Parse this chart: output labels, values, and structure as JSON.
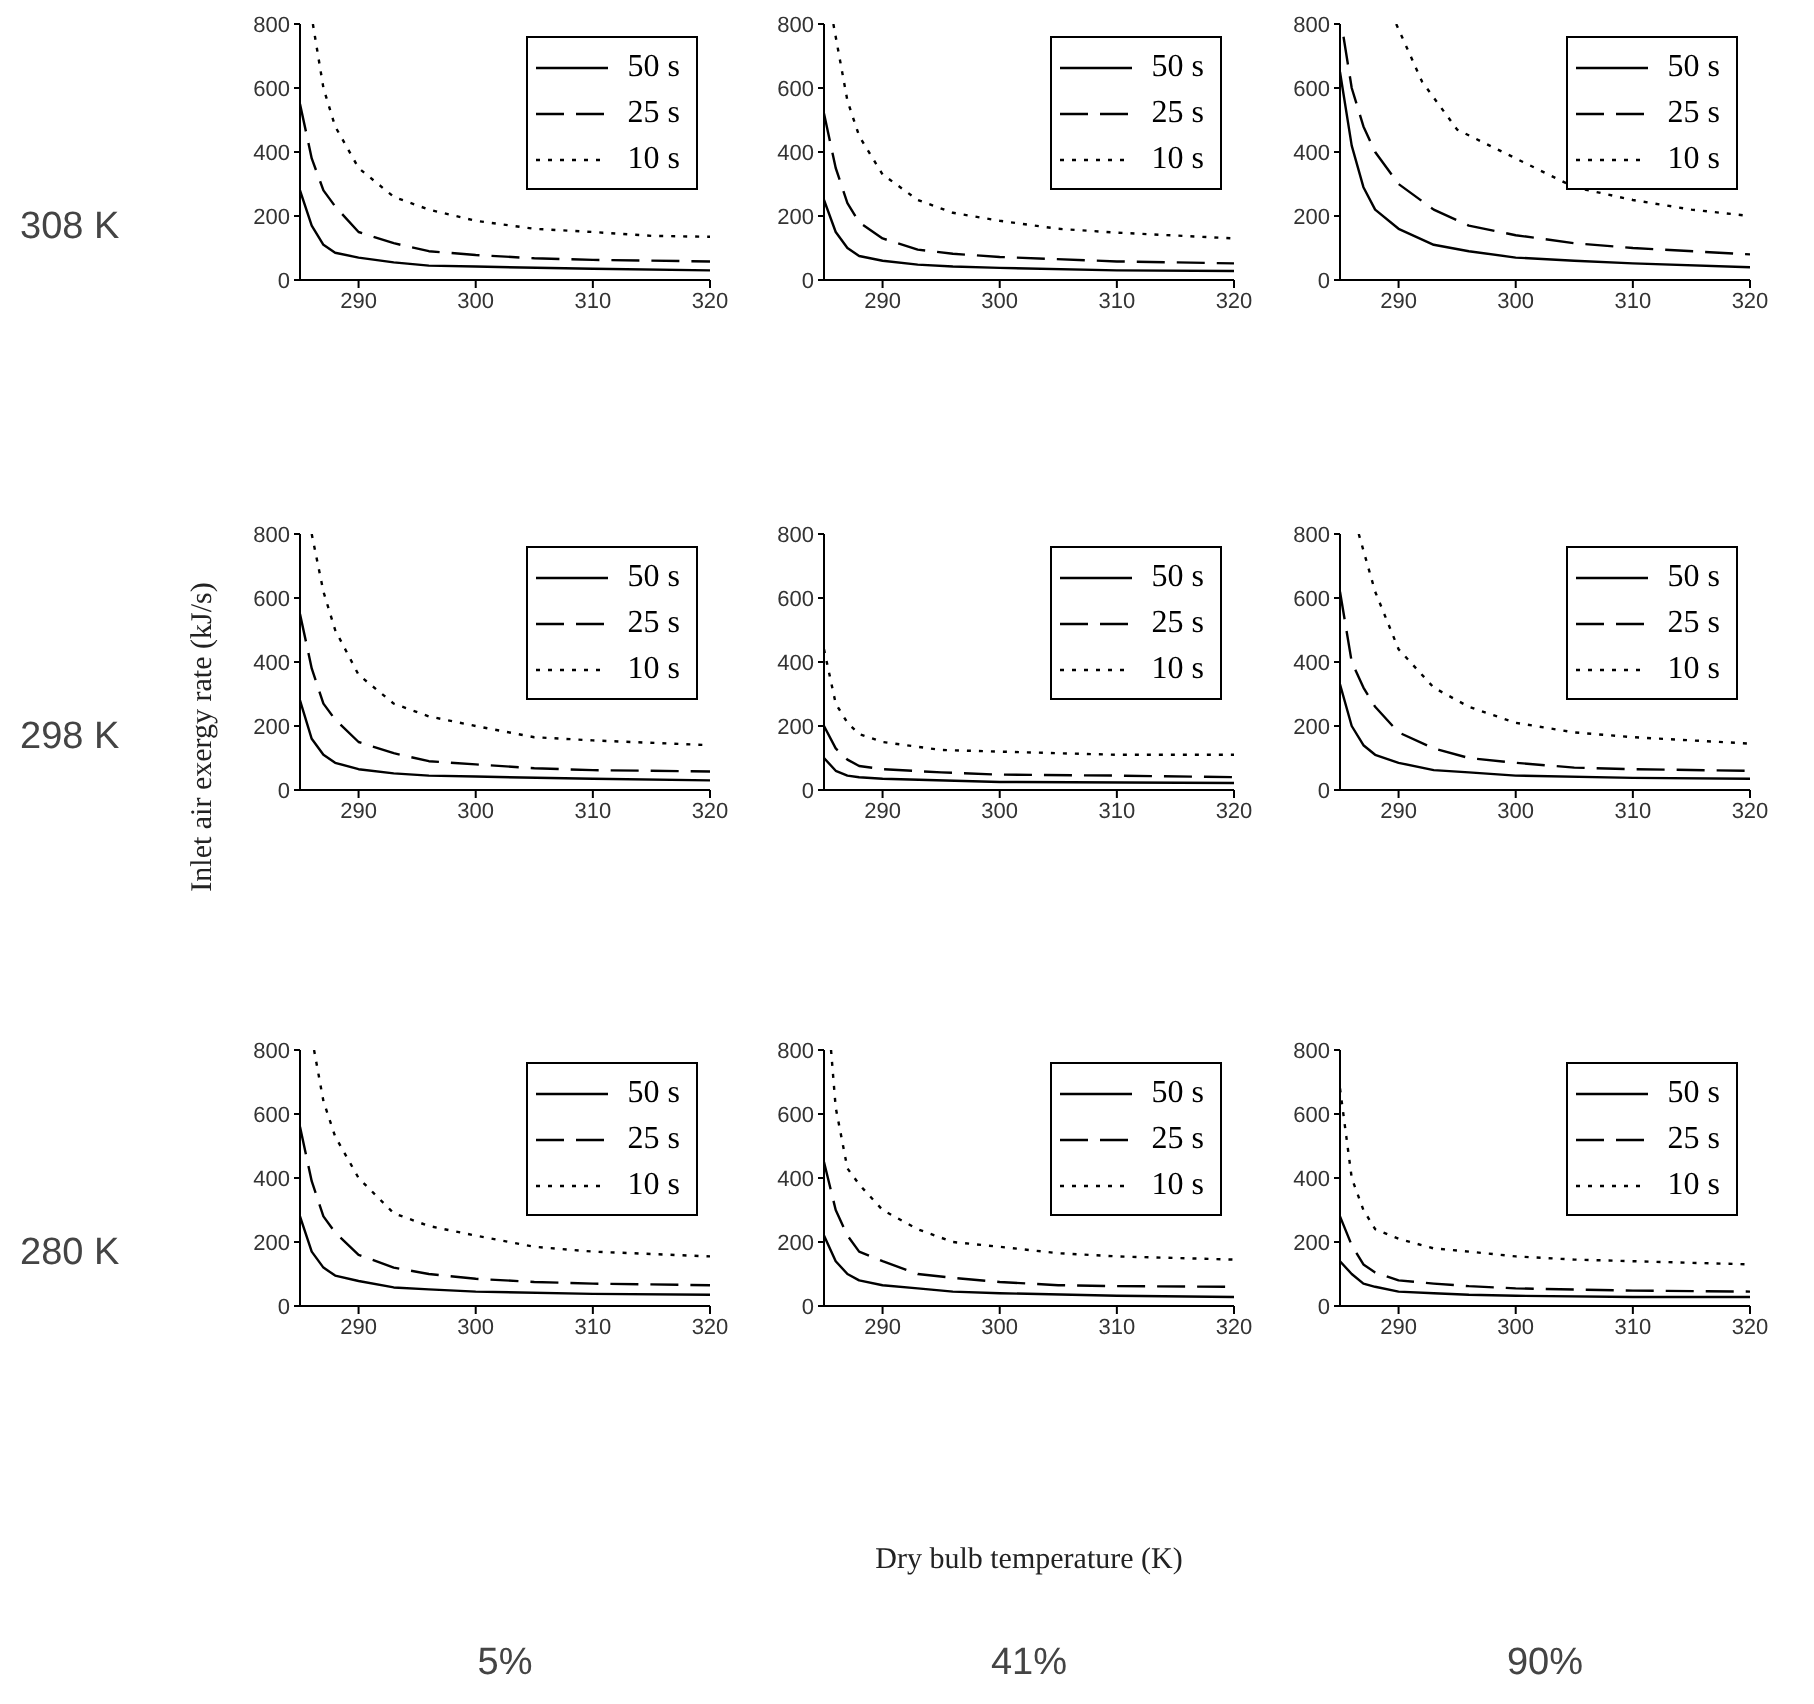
{
  "chart_data": [
    {
      "type": "line",
      "annotations": [
        "308 K"
      ],
      "xlim": [
        285,
        320
      ],
      "xticks": [
        290,
        300,
        310,
        320
      ],
      "ylim": [
        0,
        800
      ],
      "yticks": [
        0,
        200,
        400,
        600,
        800
      ],
      "legend": "top right",
      "grid": false,
      "series": [
        {
          "name": "50 s",
          "color": "#000000",
          "line_style": "solid",
          "x": [
            285,
            286,
            287,
            288,
            290,
            293,
            296,
            300,
            310,
            320
          ],
          "values": [
            280,
            170,
            110,
            85,
            70,
            55,
            45,
            42,
            35,
            30
          ]
        },
        {
          "name": "25 s",
          "color": "#000000",
          "line_style": "dashed",
          "x": [
            285,
            286,
            287,
            288,
            290,
            293,
            296,
            300,
            305,
            310,
            320
          ],
          "values": [
            550,
            380,
            280,
            230,
            150,
            115,
            90,
            78,
            68,
            63,
            58
          ]
        },
        {
          "name": "10 s",
          "color": "#000000",
          "line_style": "dotted",
          "x": [
            286.1,
            287,
            288,
            290,
            293,
            296,
            300,
            305,
            310,
            315,
            320
          ],
          "values": [
            800,
            600,
            480,
            350,
            260,
            220,
            185,
            160,
            150,
            138,
            135
          ]
        }
      ]
    },
    {
      "type": "line",
      "xlim": [
        285,
        320
      ],
      "xticks": [
        290,
        300,
        310,
        320
      ],
      "ylim": [
        0,
        800
      ],
      "yticks": [
        0,
        200,
        400,
        600,
        800
      ],
      "legend": "top right",
      "grid": false,
      "series": [
        {
          "name": "50 s",
          "color": "#000000",
          "line_style": "solid",
          "x": [
            285,
            286,
            287,
            288,
            290,
            293,
            296,
            300,
            310,
            320
          ],
          "values": [
            250,
            150,
            100,
            75,
            60,
            48,
            42,
            38,
            30,
            28
          ]
        },
        {
          "name": "25 s",
          "color": "#000000",
          "line_style": "dashed",
          "x": [
            285,
            286,
            287,
            288,
            290,
            293,
            296,
            300,
            310,
            320
          ],
          "values": [
            520,
            350,
            240,
            180,
            130,
            95,
            82,
            72,
            58,
            52
          ]
        },
        {
          "name": "10 s",
          "color": "#000000",
          "line_style": "dotted",
          "x": [
            285.8,
            287,
            288,
            290,
            293,
            296,
            300,
            305,
            310,
            320
          ],
          "values": [
            800,
            560,
            450,
            330,
            250,
            210,
            185,
            160,
            148,
            130
          ]
        }
      ]
    },
    {
      "type": "line",
      "xlim": [
        285,
        320
      ],
      "xticks": [
        290,
        300,
        310,
        320
      ],
      "ylim": [
        0,
        800
      ],
      "yticks": [
        0,
        200,
        400,
        600,
        800
      ],
      "legend": "top right",
      "grid": false,
      "series": [
        {
          "name": "50 s",
          "color": "#000000",
          "line_style": "solid",
          "x": [
            285,
            286,
            287,
            288,
            290,
            293,
            296,
            300,
            305,
            310,
            320
          ],
          "values": [
            650,
            420,
            290,
            220,
            160,
            110,
            90,
            70,
            60,
            52,
            40
          ]
        },
        {
          "name": "25 s",
          "color": "#000000",
          "line_style": "dashed",
          "x": [
            285.3,
            286,
            287,
            288,
            290,
            293,
            296,
            300,
            305,
            310,
            320
          ],
          "values": [
            760,
            600,
            480,
            400,
            300,
            220,
            170,
            140,
            115,
            100,
            80
          ]
        },
        {
          "name": "10 s",
          "color": "#000000",
          "line_style": "dotted",
          "x": [
            289.8,
            292,
            295,
            300,
            305,
            310,
            315,
            320
          ],
          "values": [
            800,
            620,
            470,
            380,
            290,
            250,
            220,
            200
          ]
        }
      ]
    },
    {
      "type": "line",
      "annotations": [
        "298 K"
      ],
      "ylabel": "Inlet air exergy rate (kJ/s)",
      "xlim": [
        285,
        320
      ],
      "xticks": [
        290,
        300,
        310,
        320
      ],
      "ylim": [
        0,
        800
      ],
      "yticks": [
        0,
        200,
        400,
        600,
        800
      ],
      "legend": "top right",
      "grid": false,
      "series": [
        {
          "name": "50 s",
          "color": "#000000",
          "line_style": "solid",
          "x": [
            285,
            286,
            287,
            288,
            290,
            293,
            296,
            300,
            310,
            320
          ],
          "values": [
            280,
            160,
            110,
            85,
            65,
            52,
            45,
            42,
            35,
            30
          ]
        },
        {
          "name": "25 s",
          "color": "#000000",
          "line_style": "dashed",
          "x": [
            285,
            286,
            287,
            288,
            290,
            293,
            296,
            300,
            305,
            310,
            320
          ],
          "values": [
            550,
            380,
            270,
            220,
            150,
            115,
            90,
            80,
            68,
            62,
            58
          ]
        },
        {
          "name": "10 s",
          "color": "#000000",
          "line_style": "dotted",
          "x": [
            286,
            287,
            288,
            290,
            293,
            296,
            300,
            305,
            310,
            320
          ],
          "values": [
            800,
            620,
            500,
            360,
            270,
            230,
            200,
            165,
            155,
            140
          ]
        }
      ]
    },
    {
      "type": "line",
      "xlim": [
        285,
        320
      ],
      "xticks": [
        290,
        300,
        310,
        320
      ],
      "ylim": [
        0,
        800
      ],
      "yticks": [
        0,
        200,
        400,
        600,
        800
      ],
      "legend": "top right",
      "grid": false,
      "series": [
        {
          "name": "50 s",
          "color": "#000000",
          "line_style": "solid",
          "x": [
            285,
            286,
            287,
            288,
            290,
            300,
            320
          ],
          "values": [
            100,
            60,
            45,
            40,
            35,
            25,
            22
          ]
        },
        {
          "name": "25 s",
          "color": "#000000",
          "line_style": "dashed",
          "x": [
            285,
            286,
            287,
            288,
            290,
            295,
            300,
            310,
            320
          ],
          "values": [
            200,
            130,
            95,
            75,
            65,
            55,
            48,
            45,
            40
          ]
        },
        {
          "name": "10 s",
          "color": "#000000",
          "line_style": "dotted",
          "x": [
            285,
            286,
            287,
            288,
            290,
            295,
            300,
            305,
            310,
            320
          ],
          "values": [
            440,
            270,
            210,
            175,
            150,
            125,
            120,
            115,
            110,
            110
          ]
        }
      ]
    },
    {
      "type": "line",
      "xlim": [
        285,
        320
      ],
      "xticks": [
        290,
        300,
        310,
        320
      ],
      "ylim": [
        0,
        800
      ],
      "yticks": [
        0,
        200,
        400,
        600,
        800
      ],
      "legend": "top right",
      "grid": false,
      "series": [
        {
          "name": "50 s",
          "color": "#000000",
          "line_style": "solid",
          "x": [
            285,
            286,
            287,
            288,
            290,
            293,
            296,
            300,
            310,
            320
          ],
          "values": [
            330,
            200,
            140,
            110,
            85,
            62,
            55,
            45,
            38,
            35
          ]
        },
        {
          "name": "25 s",
          "color": "#000000",
          "line_style": "dashed",
          "x": [
            285,
            286,
            287,
            288,
            290,
            293,
            296,
            300,
            305,
            310,
            320
          ],
          "values": [
            620,
            400,
            320,
            260,
            180,
            130,
            100,
            85,
            70,
            65,
            60
          ]
        },
        {
          "name": "10 s",
          "color": "#000000",
          "line_style": "dotted",
          "x": [
            286.6,
            288,
            290,
            293,
            296,
            300,
            305,
            310,
            320
          ],
          "values": [
            800,
            620,
            440,
            320,
            260,
            210,
            180,
            165,
            145
          ]
        }
      ]
    },
    {
      "type": "line",
      "annotations": [
        "280 K",
        "5%"
      ],
      "xlim": [
        285,
        320
      ],
      "xticks": [
        290,
        300,
        310,
        320
      ],
      "ylim": [
        0,
        800
      ],
      "yticks": [
        0,
        200,
        400,
        600,
        800
      ],
      "legend": "top right",
      "grid": false,
      "series": [
        {
          "name": "50 s",
          "color": "#000000",
          "line_style": "solid",
          "x": [
            285,
            286,
            287,
            288,
            290,
            293,
            296,
            300,
            310,
            320
          ],
          "values": [
            280,
            170,
            120,
            95,
            78,
            58,
            52,
            45,
            38,
            35
          ]
        },
        {
          "name": "25 s",
          "color": "#000000",
          "line_style": "dashed",
          "x": [
            285,
            286,
            287,
            288,
            290,
            293,
            296,
            300,
            305,
            310,
            320
          ],
          "values": [
            560,
            390,
            280,
            230,
            160,
            120,
            100,
            85,
            75,
            70,
            65
          ]
        },
        {
          "name": "10 s",
          "color": "#000000",
          "line_style": "dotted",
          "x": [
            286.2,
            287,
            288,
            290,
            293,
            296,
            300,
            305,
            310,
            320
          ],
          "values": [
            800,
            640,
            530,
            400,
            290,
            250,
            220,
            185,
            170,
            155
          ]
        }
      ]
    },
    {
      "type": "line",
      "annotations": [
        "41%"
      ],
      "xlabel": "Dry bulb temperature (K)",
      "xlim": [
        285,
        320
      ],
      "xticks": [
        290,
        300,
        310,
        320
      ],
      "ylim": [
        0,
        800
      ],
      "yticks": [
        0,
        200,
        400,
        600,
        800
      ],
      "legend": "top right",
      "grid": false,
      "series": [
        {
          "name": "50 s",
          "color": "#000000",
          "line_style": "solid",
          "x": [
            285,
            286,
            287,
            288,
            290,
            293,
            296,
            300,
            310,
            320
          ],
          "values": [
            220,
            140,
            100,
            80,
            65,
            55,
            45,
            40,
            32,
            28
          ]
        },
        {
          "name": "25 s",
          "color": "#000000",
          "line_style": "dashed",
          "x": [
            285,
            286,
            287,
            288,
            290,
            293,
            296,
            300,
            305,
            310,
            320
          ],
          "values": [
            450,
            300,
            220,
            170,
            140,
            100,
            88,
            75,
            65,
            62,
            60
          ]
        },
        {
          "name": "10 s",
          "color": "#000000",
          "line_style": "dotted",
          "x": [
            285.6,
            286,
            287,
            288,
            290,
            293,
            296,
            300,
            305,
            310,
            320
          ],
          "values": [
            800,
            620,
            430,
            380,
            300,
            240,
            200,
            185,
            165,
            155,
            145
          ]
        }
      ]
    },
    {
      "type": "line",
      "annotations": [
        "90%"
      ],
      "xlim": [
        285,
        320
      ],
      "xticks": [
        290,
        300,
        310,
        320
      ],
      "ylim": [
        0,
        800
      ],
      "yticks": [
        0,
        200,
        400,
        600,
        800
      ],
      "legend": "top right",
      "grid": false,
      "series": [
        {
          "name": "50 s",
          "color": "#000000",
          "line_style": "solid",
          "x": [
            285,
            286,
            287,
            288,
            290,
            293,
            296,
            300,
            310,
            320
          ],
          "values": [
            140,
            100,
            70,
            60,
            45,
            40,
            35,
            32,
            28,
            28
          ]
        },
        {
          "name": "25 s",
          "color": "#000000",
          "line_style": "dashed",
          "x": [
            285,
            286,
            287,
            288,
            290,
            293,
            296,
            300,
            310,
            320
          ],
          "values": [
            280,
            190,
            130,
            105,
            80,
            70,
            62,
            55,
            48,
            45
          ]
        },
        {
          "name": "10 s",
          "color": "#000000",
          "line_style": "dotted",
          "x": [
            285,
            286,
            287,
            288,
            290,
            293,
            296,
            300,
            305,
            310,
            320
          ],
          "values": [
            680,
            400,
            300,
            240,
            210,
            180,
            170,
            155,
            145,
            140,
            130
          ]
        }
      ]
    }
  ]
}
